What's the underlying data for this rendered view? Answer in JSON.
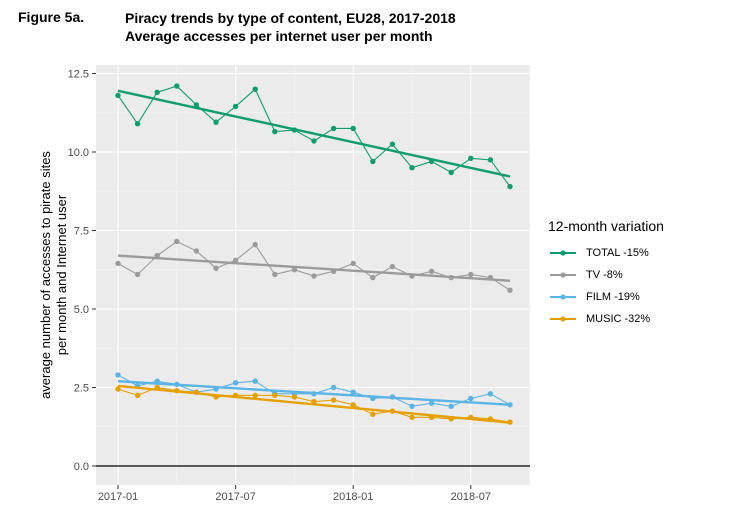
{
  "figure_label": "Figure 5a.",
  "title_line1": "Piracy trends by type of content, EU28, 2017-2018",
  "title_line2": "Average accesses per internet user per month",
  "colors": {
    "TOTAL": "#0f9d6c",
    "TV": "#9b9b9b",
    "FILM": "#5ab4e5",
    "MUSIC": "#e5a000"
  },
  "chart_data": {
    "type": "line",
    "ylabel_line1": "average number of accesses to pirate sites",
    "ylabel_line2": "per month and Internet user",
    "ylim": [
      -0.5,
      12.8
    ],
    "yticks": [
      0.0,
      2.5,
      5.0,
      7.5,
      10.0,
      12.5
    ],
    "ytick_labels": [
      "0.0",
      "2.5",
      "5.0",
      "7.5",
      "10.0",
      "12.5"
    ],
    "xticks": [
      "2017-01",
      "2017-07",
      "2018-01",
      "2018-07"
    ],
    "x": [
      "2017-01",
      "2017-02",
      "2017-03",
      "2017-04",
      "2017-05",
      "2017-06",
      "2017-07",
      "2017-08",
      "2017-09",
      "2017-10",
      "2017-11",
      "2017-12",
      "2018-01",
      "2018-02",
      "2018-03",
      "2018-04",
      "2018-05",
      "2018-06",
      "2018-07",
      "2018-08",
      "2018-09"
    ],
    "grid": true,
    "legend_title": "12-month variation",
    "legend_position": "right",
    "series": [
      {
        "name": "TOTAL -15%",
        "key": "TOTAL",
        "values": [
          11.8,
          10.9,
          11.9,
          12.1,
          11.5,
          10.95,
          11.45,
          12.0,
          10.65,
          10.7,
          10.35,
          10.75,
          10.75,
          9.7,
          10.25,
          9.5,
          9.7,
          9.35,
          9.8,
          9.75,
          8.9
        ],
        "trend": [
          11.95,
          9.22
        ]
      },
      {
        "name": "TV -8%",
        "key": "TV",
        "values": [
          6.45,
          6.1,
          6.7,
          7.15,
          6.85,
          6.3,
          6.55,
          7.05,
          6.1,
          6.25,
          6.05,
          6.2,
          6.45,
          6.0,
          6.35,
          6.05,
          6.2,
          6.0,
          6.1,
          6.0,
          5.6
        ],
        "trend": [
          6.7,
          5.9
        ]
      },
      {
        "name": "FILM -19%",
        "key": "FILM",
        "values": [
          2.9,
          2.55,
          2.7,
          2.6,
          2.35,
          2.45,
          2.65,
          2.7,
          2.3,
          2.3,
          2.3,
          2.5,
          2.35,
          2.15,
          2.2,
          1.9,
          2.0,
          1.9,
          2.15,
          2.3,
          1.95
        ],
        "trend": [
          2.7,
          1.95
        ]
      },
      {
        "name": "MUSIC -32%",
        "key": "MUSIC",
        "values": [
          2.45,
          2.25,
          2.5,
          2.4,
          2.35,
          2.2,
          2.25,
          2.25,
          2.25,
          2.2,
          2.05,
          2.1,
          1.95,
          1.65,
          1.75,
          1.55,
          1.55,
          1.5,
          1.55,
          1.5,
          1.4
        ],
        "trend": [
          2.55,
          1.38
        ]
      }
    ]
  }
}
